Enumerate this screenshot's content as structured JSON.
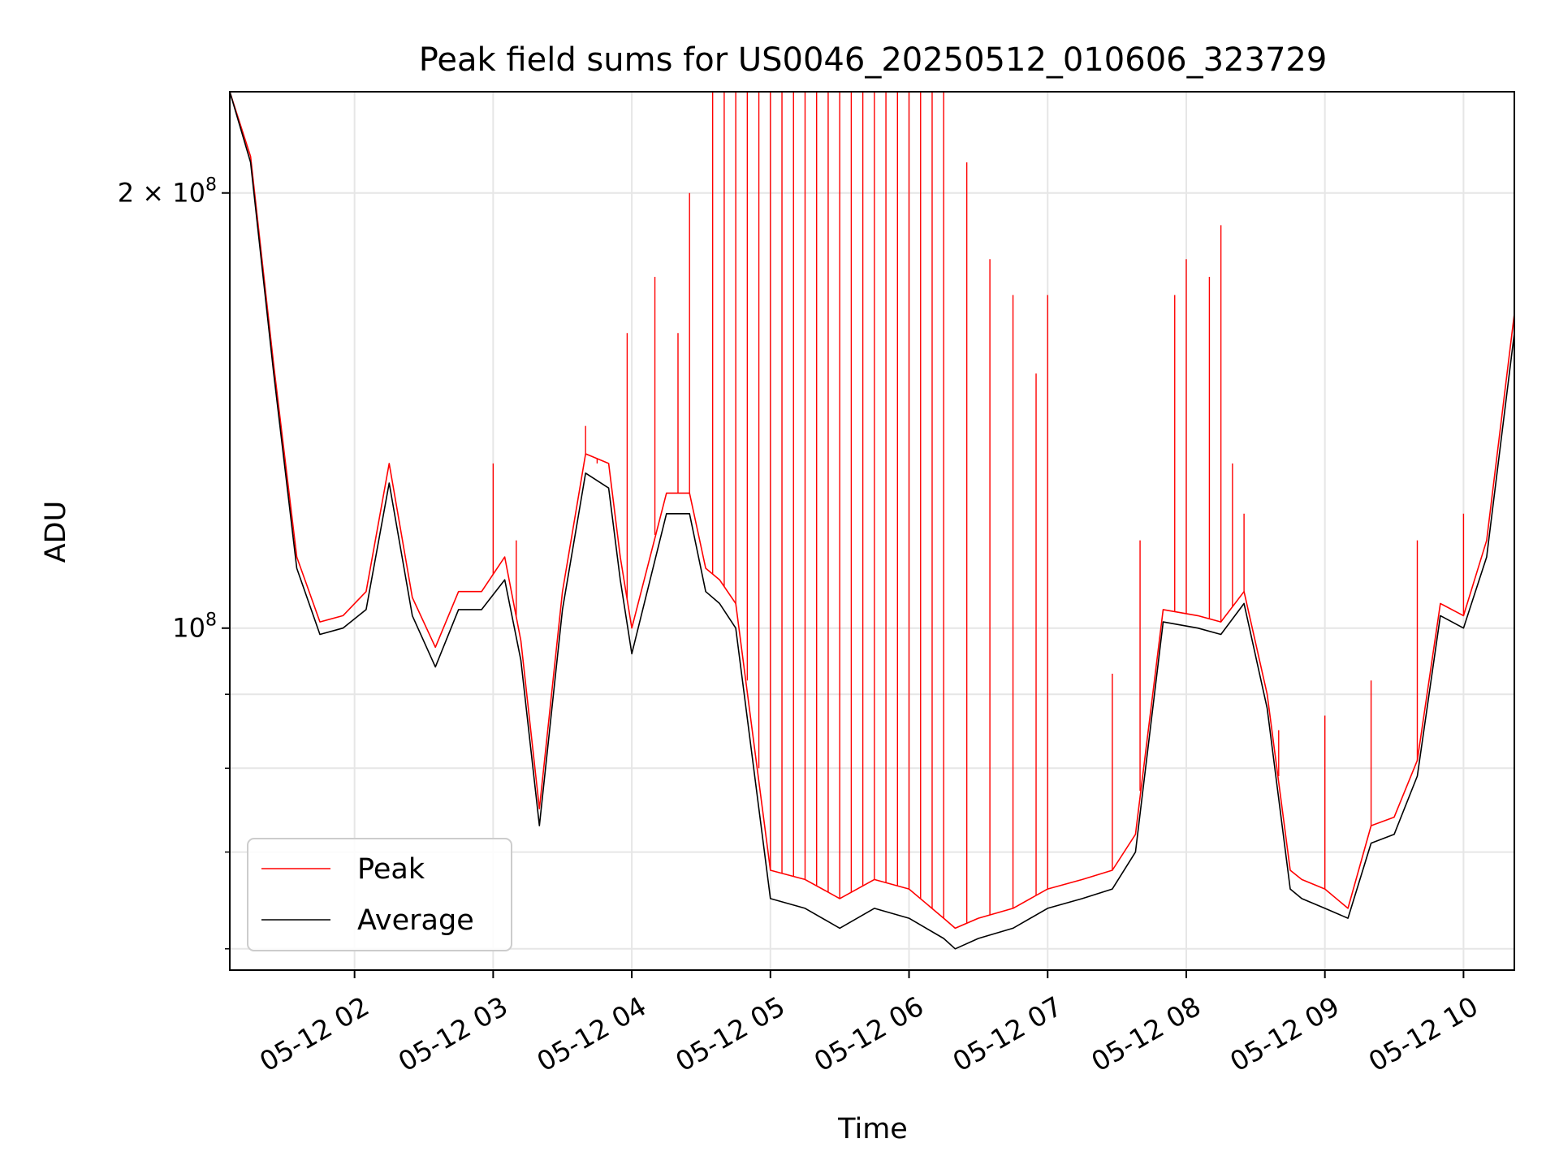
{
  "chart_data": {
    "type": "line",
    "title": "Peak field sums for US0046_20250512_010606_323729",
    "xlabel": "Time",
    "ylabel": "ADU",
    "y_scale": "log",
    "ylim": [
      58000000,
      235000000
    ],
    "xlim": [
      "2025-05-12 01:06",
      "2025-05-12 10:22"
    ],
    "x_tick_labels": [
      "05-12 02",
      "05-12 03",
      "05-12 04",
      "05-12 05",
      "05-12 06",
      "05-12 07",
      "05-12 08",
      "05-12 09",
      "05-12 10"
    ],
    "x_tick_values": [
      "2025-05-12 02:00",
      "2025-05-12 03:00",
      "2025-05-12 04:00",
      "2025-05-12 05:00",
      "2025-05-12 06:00",
      "2025-05-12 07:00",
      "2025-05-12 08:00",
      "2025-05-12 09:00",
      "2025-05-12 10:00"
    ],
    "y_major_ticks": [
      {
        "value": 100000000,
        "base": "10",
        "exp": "8",
        "mult": ""
      },
      {
        "value": 200000000,
        "base": "10",
        "exp": "8",
        "mult": "2 × "
      }
    ],
    "y_minor_ticks": [
      60000000,
      70000000,
      80000000,
      90000000
    ],
    "grid": true,
    "legend_position": "lower-left",
    "series": [
      {
        "name": "Average",
        "color": "#000000",
        "x": [
          "2025-05-12 01:06",
          "2025-05-12 01:15",
          "2025-05-12 01:25",
          "2025-05-12 01:35",
          "2025-05-12 01:45",
          "2025-05-12 01:55",
          "2025-05-12 02:05",
          "2025-05-12 02:15",
          "2025-05-12 02:25",
          "2025-05-12 02:35",
          "2025-05-12 02:45",
          "2025-05-12 02:55",
          "2025-05-12 03:05",
          "2025-05-12 03:12",
          "2025-05-12 03:20",
          "2025-05-12 03:30",
          "2025-05-12 03:40",
          "2025-05-12 03:50",
          "2025-05-12 03:55",
          "2025-05-12 04:00",
          "2025-05-12 04:15",
          "2025-05-12 04:25",
          "2025-05-12 04:32",
          "2025-05-12 04:38",
          "2025-05-12 04:45",
          "2025-05-12 05:00",
          "2025-05-12 05:15",
          "2025-05-12 05:30",
          "2025-05-12 05:45",
          "2025-05-12 06:00",
          "2025-05-12 06:15",
          "2025-05-12 06:20",
          "2025-05-12 06:30",
          "2025-05-12 06:45",
          "2025-05-12 07:00",
          "2025-05-12 07:15",
          "2025-05-12 07:28",
          "2025-05-12 07:38",
          "2025-05-12 07:50",
          "2025-05-12 08:05",
          "2025-05-12 08:15",
          "2025-05-12 08:25",
          "2025-05-12 08:35",
          "2025-05-12 08:45",
          "2025-05-12 08:50",
          "2025-05-12 09:00",
          "2025-05-12 09:10",
          "2025-05-12 09:20",
          "2025-05-12 09:30",
          "2025-05-12 09:40",
          "2025-05-12 09:50",
          "2025-05-12 10:00",
          "2025-05-12 10:10",
          "2025-05-12 10:22"
        ],
        "y": [
          235000000,
          210000000,
          150000000,
          110000000,
          99000000,
          100000000,
          103000000,
          126000000,
          102000000,
          94000000,
          103000000,
          103000000,
          108000000,
          95000000,
          73000000,
          103000000,
          128000000,
          125000000,
          108000000,
          96000000,
          120000000,
          120000000,
          106000000,
          104000000,
          100000000,
          65000000,
          64000000,
          62000000,
          64000000,
          63000000,
          61000000,
          60000000,
          61000000,
          62000000,
          64000000,
          65000000,
          66000000,
          70000000,
          101000000,
          100000000,
          99000000,
          104000000,
          88000000,
          66000000,
          65000000,
          64000000,
          63000000,
          71000000,
          72000000,
          79000000,
          102000000,
          100000000,
          112000000,
          160000000
        ]
      },
      {
        "name": "Peak",
        "color": "#ff0000",
        "x": [
          "2025-05-12 01:06",
          "2025-05-12 01:15",
          "2025-05-12 01:25",
          "2025-05-12 01:35",
          "2025-05-12 01:45",
          "2025-05-12 01:55",
          "2025-05-12 02:05",
          "2025-05-12 02:15",
          "2025-05-12 02:25",
          "2025-05-12 02:35",
          "2025-05-12 02:45",
          "2025-05-12 02:55",
          "2025-05-12 03:05",
          "2025-05-12 03:12",
          "2025-05-12 03:20",
          "2025-05-12 03:30",
          "2025-05-12 03:40",
          "2025-05-12 03:50",
          "2025-05-12 03:55",
          "2025-05-12 04:00",
          "2025-05-12 04:15",
          "2025-05-12 04:25",
          "2025-05-12 04:32",
          "2025-05-12 04:38",
          "2025-05-12 04:45",
          "2025-05-12 05:00",
          "2025-05-12 05:15",
          "2025-05-12 05:30",
          "2025-05-12 05:45",
          "2025-05-12 06:00",
          "2025-05-12 06:15",
          "2025-05-12 06:20",
          "2025-05-12 06:30",
          "2025-05-12 06:45",
          "2025-05-12 07:00",
          "2025-05-12 07:15",
          "2025-05-12 07:28",
          "2025-05-12 07:38",
          "2025-05-12 07:50",
          "2025-05-12 08:05",
          "2025-05-12 08:15",
          "2025-05-12 08:25",
          "2025-05-12 08:35",
          "2025-05-12 08:45",
          "2025-05-12 08:50",
          "2025-05-12 09:00",
          "2025-05-12 09:10",
          "2025-05-12 09:20",
          "2025-05-12 09:30",
          "2025-05-12 09:40",
          "2025-05-12 09:50",
          "2025-05-12 10:00",
          "2025-05-12 10:10",
          "2025-05-12 10:22"
        ],
        "y": [
          235000000,
          212000000,
          152000000,
          112000000,
          101000000,
          102000000,
          106000000,
          130000000,
          105000000,
          97000000,
          106000000,
          106000000,
          112000000,
          98000000,
          75000000,
          106000000,
          132000000,
          130000000,
          112000000,
          100000000,
          124000000,
          124000000,
          110000000,
          108000000,
          104000000,
          68000000,
          67000000,
          65000000,
          67000000,
          66000000,
          63000000,
          62000000,
          63000000,
          64000000,
          66000000,
          67000000,
          68000000,
          72000000,
          103000000,
          102000000,
          101000000,
          106000000,
          90000000,
          68000000,
          67000000,
          66000000,
          64000000,
          73000000,
          74000000,
          81000000,
          104000000,
          102000000,
          115000000,
          165000000
        ]
      }
    ],
    "spikes": {
      "series": "Peak",
      "x": [
        "2025-05-12 03:00",
        "2025-05-12 03:10",
        "2025-05-12 03:40",
        "2025-05-12 03:45",
        "2025-05-12 03:58",
        "2025-05-12 04:10",
        "2025-05-12 04:20",
        "2025-05-12 04:25",
        "2025-05-12 04:35",
        "2025-05-12 04:40",
        "2025-05-12 04:45",
        "2025-05-12 04:50",
        "2025-05-12 04:55",
        "2025-05-12 05:00",
        "2025-05-12 05:05",
        "2025-05-12 05:10",
        "2025-05-12 05:15",
        "2025-05-12 05:20",
        "2025-05-12 05:25",
        "2025-05-12 05:30",
        "2025-05-12 05:35",
        "2025-05-12 05:40",
        "2025-05-12 05:45",
        "2025-05-12 05:50",
        "2025-05-12 05:55",
        "2025-05-12 06:00",
        "2025-05-12 06:05",
        "2025-05-12 06:10",
        "2025-05-12 06:15",
        "2025-05-12 06:25",
        "2025-05-12 06:35",
        "2025-05-12 06:45",
        "2025-05-12 06:55",
        "2025-05-12 07:00",
        "2025-05-12 07:28",
        "2025-05-12 07:40",
        "2025-05-12 07:55",
        "2025-05-12 08:00",
        "2025-05-12 08:10",
        "2025-05-12 08:15",
        "2025-05-12 08:20",
        "2025-05-12 08:25",
        "2025-05-12 08:40",
        "2025-05-12 09:00",
        "2025-05-12 09:20",
        "2025-05-12 09:40",
        "2025-05-12 10:00"
      ],
      "y": [
        130000000,
        115000000,
        138000000,
        130000000,
        160000000,
        175000000,
        160000000,
        200000000,
        235000000,
        235000000,
        235000000,
        235000000,
        235000000,
        235000000,
        235000000,
        235000000,
        235000000,
        235000000,
        235000000,
        235000000,
        235000000,
        235000000,
        235000000,
        235000000,
        235000000,
        235000000,
        235000000,
        235000000,
        235000000,
        210000000,
        180000000,
        170000000,
        150000000,
        170000000,
        93000000,
        115000000,
        170000000,
        180000000,
        175000000,
        190000000,
        130000000,
        120000000,
        85000000,
        87000000,
        92000000,
        115000000,
        120000000
      ]
    }
  }
}
